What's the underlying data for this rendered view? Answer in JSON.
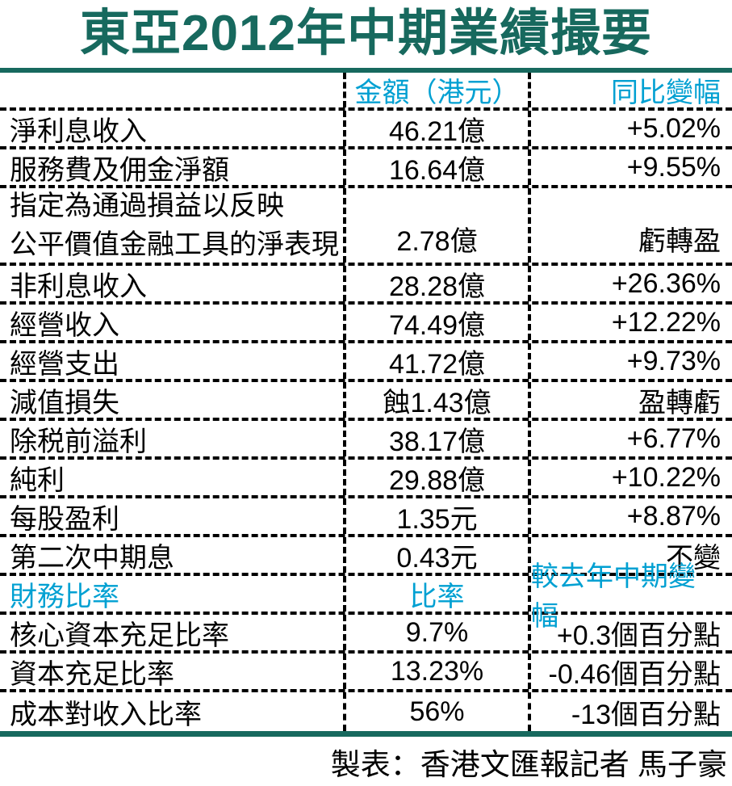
{
  "colors": {
    "title_green": "#17695e",
    "header_cyan": "#00a0d2",
    "text_black": "#000000"
  },
  "row3_lines": [
    "指定為通過損益以反映",
    "公平價值金融工具的淨表現"
  ],
  "footer": {
    "credit": "製表：香港文匯報記者 馬子豪"
  },
  "chart_data": {
    "type": "table",
    "title": "東亞2012年中期業績撮要",
    "columns": [
      "",
      "金額（港元）",
      "同比變幅"
    ],
    "rows": [
      [
        "淨利息收入",
        "46.21億",
        "+5.02%"
      ],
      [
        "服務費及佣金淨額",
        "16.64億",
        "+9.55%"
      ],
      [
        "指定為通過損益以反映公平價值金融工具的淨表現",
        "2.78億",
        "虧轉盈"
      ],
      [
        "非利息收入",
        "28.28億",
        "+26.36%"
      ],
      [
        "經營收入",
        "74.49億",
        "+12.22%"
      ],
      [
        "經營支出",
        "41.72億",
        "+9.73%"
      ],
      [
        "減值損失",
        "蝕1.43億",
        "盈轉虧"
      ],
      [
        "除税前溢利",
        "38.17億",
        "+6.77%"
      ],
      [
        "純利",
        "29.88億",
        "+10.22%"
      ],
      [
        "每股盈利",
        "1.35元",
        "+8.87%"
      ],
      [
        "第二次中期息",
        "0.43元",
        "不變"
      ]
    ],
    "section2": {
      "columns": [
        "財務比率",
        "比率",
        "較去年中期變幅"
      ],
      "rows": [
        [
          "核心資本充足比率",
          "9.7%",
          "+0.3個百分點"
        ],
        [
          "資本充足比率",
          "13.23%",
          "-0.46個百分點"
        ],
        [
          "成本對收入比率",
          "56%",
          "-13個百分點"
        ]
      ]
    }
  }
}
